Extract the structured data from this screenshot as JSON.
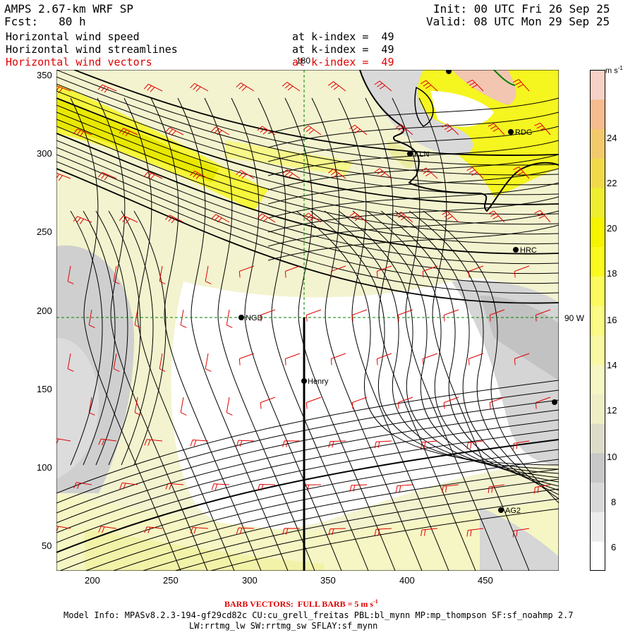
{
  "header": {
    "model_title": "AMPS 2.67-km WRF SP",
    "forecast": "Fcst:   80 h",
    "init": "Init: 00 UTC Fri 26 Sep 25",
    "valid": "Valid: 08 UTC Mon 29 Sep 25",
    "fields": [
      {
        "name": "Horizontal wind speed",
        "level": "at k-index =  49",
        "color": "#000000"
      },
      {
        "name": "Horizontal wind streamlines",
        "level": "at k-index =  49",
        "color": "#000000"
      },
      {
        "name": "Horizontal wind vectors",
        "level": "at k-index =  49",
        "color": "#e00000"
      }
    ]
  },
  "map": {
    "x_ticks": [
      "200",
      "250",
      "300",
      "350",
      "400",
      "450"
    ],
    "y_ticks": [
      "350",
      "300",
      "250",
      "200",
      "150",
      "100",
      "50"
    ],
    "meridian_label": "180",
    "parallel_label": "90 W",
    "stations": [
      {
        "name": "RDG"
      },
      {
        "name": "KLN"
      },
      {
        "name": "HRC"
      },
      {
        "name": "NGD"
      },
      {
        "name": "Henry"
      },
      {
        "name": "AG2"
      }
    ]
  },
  "colorbar": {
    "units": "m s",
    "units_exp": "-1",
    "labels": [
      "24",
      "22",
      "20",
      "18",
      "16",
      "14",
      "12",
      "10",
      "8",
      "6"
    ],
    "colors": [
      "#ffffff",
      "#ececec",
      "#d9d9d9",
      "#c8c8c8",
      "#dcdcc8",
      "#efefc6",
      "#f7f7c4",
      "#f9f9a4",
      "#fafa84",
      "#fbfb60",
      "#fafa20",
      "#f5f500",
      "#eeee30",
      "#f0da4a",
      "#f2ca6c",
      "#f6bc90",
      "#f6d2c6"
    ]
  },
  "footer": {
    "barb_label": "BARB VECTORS:  FULL BARB = 5 m s",
    "barb_exp": "-1",
    "model_info": "Model Info: MPASv8.2.3-194-gf29cd82c CU:cu_grell_freitas PBL:bl_mynn MP:mp_thompson SF:sf_noahmp 2.7",
    "physics": "LW:rrtmg_lw SW:rrtmg_sw SFLAY:sf_mynn"
  }
}
